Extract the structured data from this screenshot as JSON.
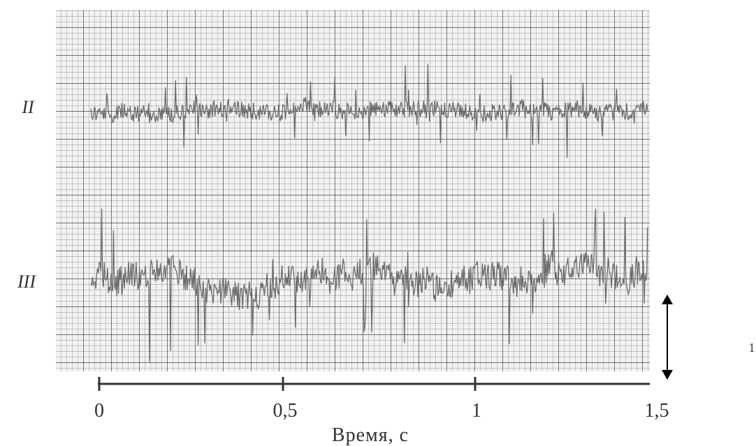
{
  "figure": {
    "traces": [
      {
        "label": "II"
      },
      {
        "label": "III"
      }
    ],
    "time_axis": {
      "ticks": [
        "0",
        "0,5",
        "1",
        "1,5"
      ],
      "label": "Время, с"
    },
    "scale_label": "1"
  }
}
